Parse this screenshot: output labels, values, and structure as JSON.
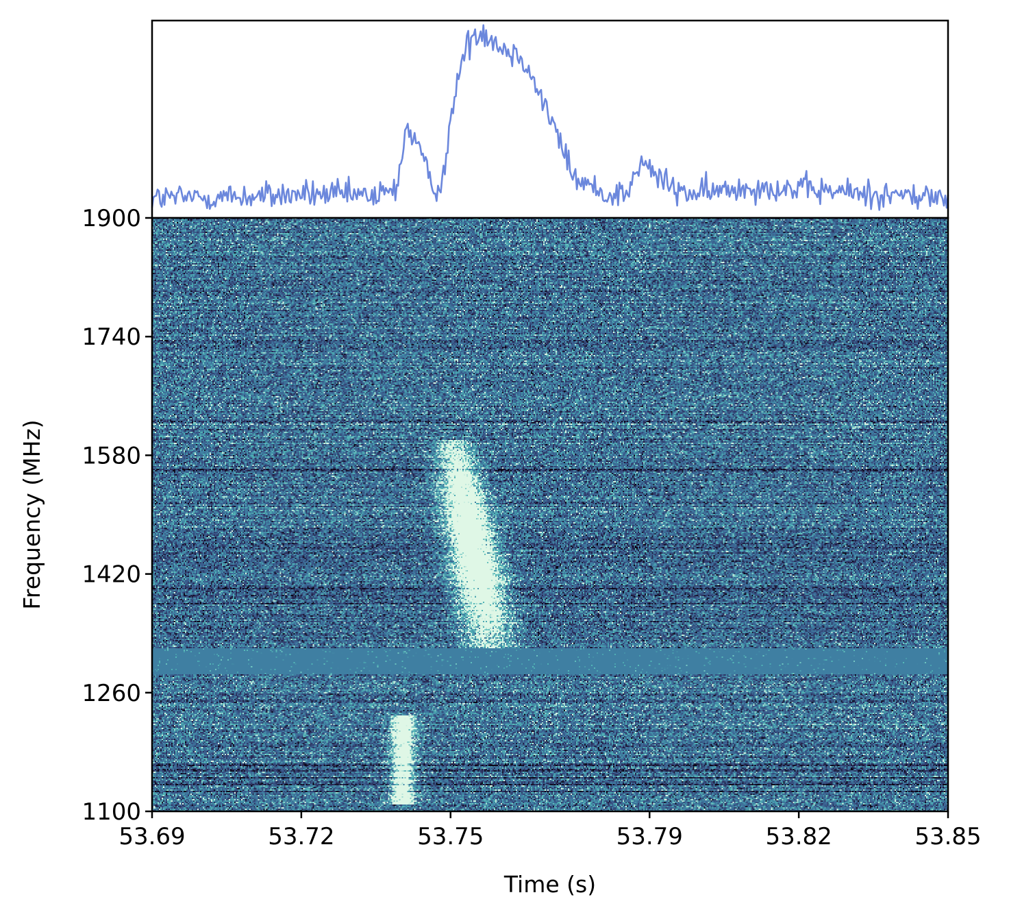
{
  "chart_data": [
    {
      "type": "line",
      "panel": "top",
      "title": "",
      "xlabel": "",
      "ylabel": "",
      "series": [
        {
          "color": "#6b87dc",
          "knots": {
            "x": [
              53.69,
              53.712,
              53.72,
              53.735,
              53.739,
              53.741,
              53.743,
              53.746,
              53.748,
              53.7505,
              53.752,
              53.7535,
              53.7545,
              53.756,
              53.7575,
              53.7595,
              53.762,
              53.7645,
              53.767,
              53.7695,
              53.772,
              53.775,
              53.781,
              53.7855,
              53.7885,
              53.795,
              53.8,
              53.81,
              53.83,
              53.85
            ],
            "y": [
              0.1,
              0.11,
              0.12,
              0.11,
              0.14,
              0.45,
              0.4,
              0.17,
              0.15,
              0.55,
              0.78,
              0.88,
              0.92,
              0.95,
              0.93,
              0.88,
              0.84,
              0.82,
              0.68,
              0.54,
              0.38,
              0.2,
              0.12,
              0.13,
              0.28,
              0.14,
              0.12,
              0.16,
              0.13,
              0.1
            ]
          },
          "noise": 0.035
        }
      ],
      "xlim": [
        53.69,
        53.85
      ],
      "ylim": [
        0,
        1
      ]
    },
    {
      "type": "heatmap",
      "panel": "bottom",
      "colormap": [
        "#0b0716",
        "#2b2d5a",
        "#3a5b8c",
        "#3f7fa2",
        "#52b7b7",
        "#dff7e6"
      ],
      "xlabel": "Time (s)",
      "ylabel": "Frequency (MHz)",
      "xlim": [
        53.69,
        53.85
      ],
      "ylim": [
        1100,
        1900
      ],
      "xticks": [
        "53.69",
        "53.72",
        "53.75",
        "53.79",
        "53.82",
        "53.85"
      ],
      "xtick_values": [
        53.69,
        53.72,
        53.75,
        53.79,
        53.82,
        53.85
      ],
      "yticks": [
        "1100",
        "1260",
        "1420",
        "1580",
        "1740",
        "1900"
      ],
      "ytick_values": [
        1100,
        1260,
        1420,
        1580,
        1740,
        1900
      ],
      "features": {
        "main_burst": {
          "freq_top": 1600,
          "freq_bottom": 1310,
          "time_at_top": 53.7505,
          "time_at_bottom": 53.7585,
          "width_s": 0.006
        },
        "secondary_burst": {
          "freq_top": 1230,
          "freq_bottom": 1110,
          "time": 53.7405,
          "width_s": 0.0035
        },
        "masked_band_mhz": [
          1285,
          1320
        ],
        "rfi_lines_mhz": [
          1625,
          1537,
          1560,
          1400,
          1380,
          1163,
          1155,
          1145,
          1137,
          1127
        ]
      }
    }
  ]
}
